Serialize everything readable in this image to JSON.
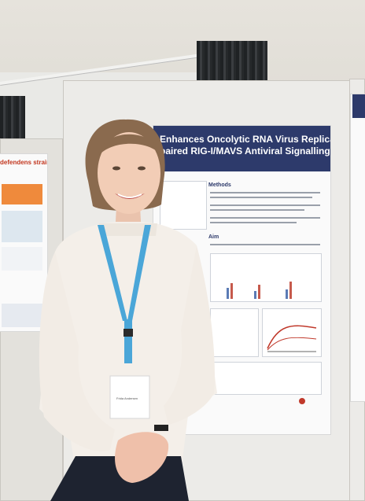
{
  "poster": {
    "title_line1": "Enhances Oncolytic RNA Virus Replication through",
    "title_line2": "paired RIG-I/MAVS Antiviral Signalling",
    "section_methods": "Methods",
    "section_aim": "Aim"
  },
  "left_poster": {
    "title": "defendens strains"
  },
  "badge": {
    "name": "Frida Andersen"
  },
  "colors": {
    "poster_header": "#2d3a6b",
    "lanyard": "#4aa6d8",
    "blouse": "#f4efe9",
    "accent_red": "#c2371f"
  }
}
